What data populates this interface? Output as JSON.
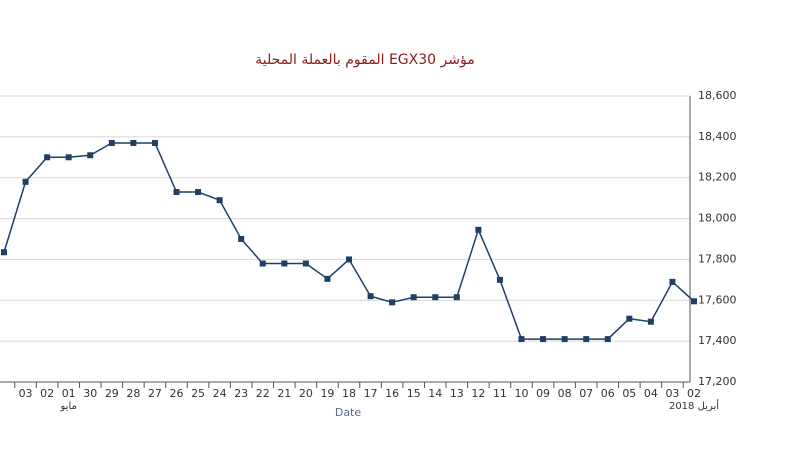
{
  "chart_data": {
    "type": "line",
    "title": "مؤشر EGX30 المقوم بالعملة المحلية",
    "x_label": "Date",
    "categories": [
      null,
      "03",
      "02",
      "01",
      "30",
      "29",
      "28",
      "27",
      "26",
      "25",
      "24",
      "23",
      "22",
      "21",
      "20",
      "19",
      "18",
      "17",
      "16",
      "15",
      "14",
      "13",
      "12",
      "11",
      "10",
      "09",
      "08",
      "07",
      "06",
      "05",
      "04",
      "03",
      "02"
    ],
    "category_sublabels": [
      null,
      null,
      null,
      "مايو",
      null,
      null,
      null,
      null,
      null,
      null,
      null,
      null,
      null,
      null,
      null,
      null,
      null,
      null,
      null,
      null,
      null,
      null,
      null,
      null,
      null,
      null,
      null,
      null,
      null,
      null,
      null,
      null,
      "أبريل 2018"
    ],
    "series": [
      {
        "name": "EGX30",
        "color": "#1f3f66",
        "values": [
          17835,
          18180,
          18300,
          18300,
          18310,
          18370,
          18370,
          18370,
          18130,
          18130,
          18090,
          17900,
          17780,
          17780,
          17780,
          17705,
          17800,
          17620,
          17590,
          17615,
          17615,
          17615,
          17945,
          17700,
          17410,
          17410,
          17410,
          17410,
          17410,
          17510,
          17495,
          17690,
          17595
        ]
      }
    ],
    "ylim": [
      17200,
      18600
    ],
    "yticks": [
      {
        "value": 17200,
        "label": "17,200"
      },
      {
        "value": 17400,
        "label": "17,400"
      },
      {
        "value": 17600,
        "label": "17,600"
      },
      {
        "value": 17800,
        "label": "17,800"
      },
      {
        "value": 18000,
        "label": "18,000"
      },
      {
        "value": 18200,
        "label": "18,200"
      },
      {
        "value": 18400,
        "label": "18,400"
      },
      {
        "value": 18600,
        "label": "18,600"
      }
    ],
    "grid": true,
    "y_axis_side": "right"
  }
}
